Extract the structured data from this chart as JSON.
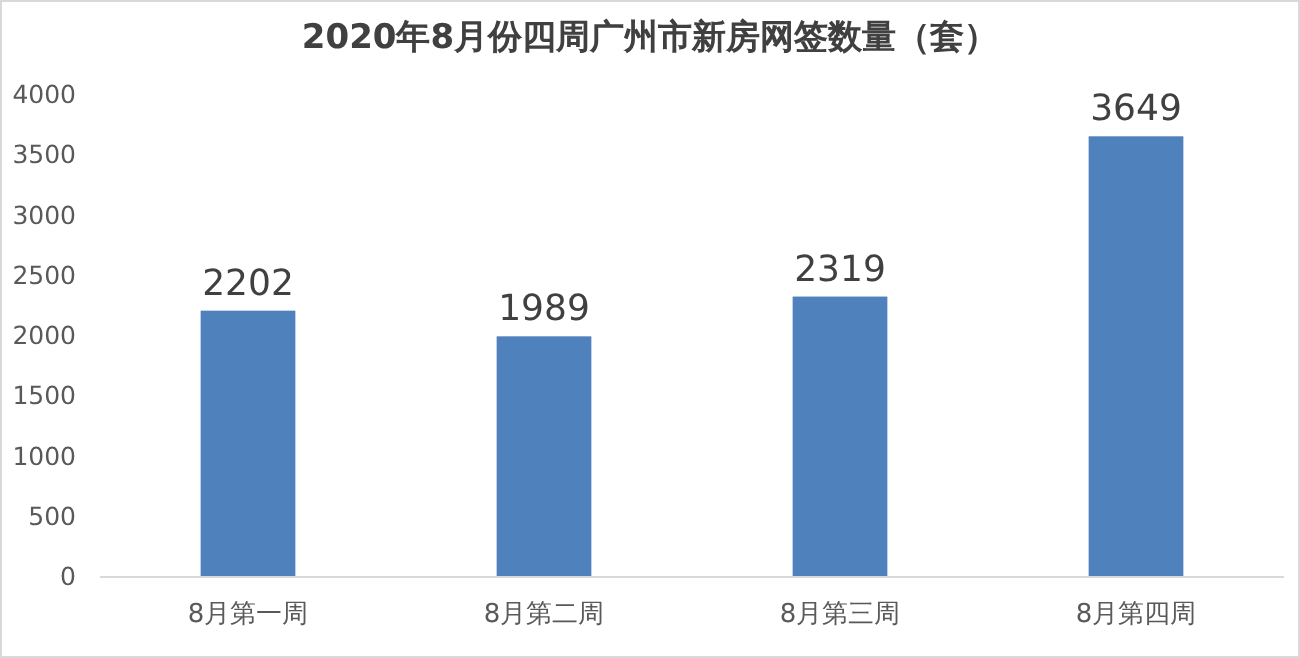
{
  "chart_data": {
    "type": "bar",
    "title": "2020年8月份四周广州市新房网签数量（套）",
    "categories": [
      "8月第一周",
      "8月第二周",
      "8月第三周",
      "8月第四周"
    ],
    "values": [
      2202,
      1989,
      2319,
      3649
    ],
    "color": "#4f81bd",
    "ylim": [
      0,
      4000
    ],
    "yticks": [
      0,
      500,
      1000,
      1500,
      2000,
      2500,
      3000,
      3500,
      4000
    ],
    "data_labels": true
  }
}
